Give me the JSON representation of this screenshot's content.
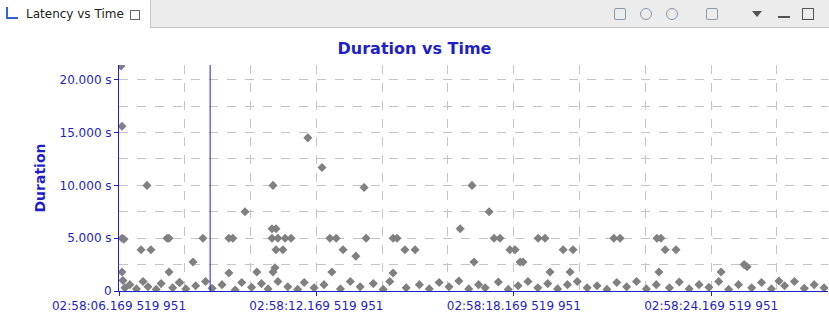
{
  "view": {
    "tab": "Latency vs Time"
  },
  "chart_data": {
    "type": "scatter",
    "title": "Duration vs Time",
    "y_label": "Duration",
    "color": "#808080",
    "marker": "diamond",
    "grid": true,
    "selection": 8.94,
    "x": [
      6.23,
      6.26,
      6.26,
      6.32,
      6.26,
      6.29,
      7.02,
      6.84,
      7.14,
      7.63,
      7.69,
      7.69,
      8.42,
      8.72,
      8.02,
      9.51,
      9.63,
      9.51,
      10.0,
      10.36,
      10.85,
      10.82,
      10.94,
      10.82,
      11.0,
      10.94,
      11.15,
      11.22,
      11.4,
      10.91,
      10.85,
      11.91,
      12.34,
      12.58,
      12.77,
      12.64,
      12.98,
      13.37,
      13.62,
      13.68,
      14.5,
      14.62,
      14.5,
      14.86,
      15.17,
      16.54,
      16.9,
      16.96,
      17.42,
      17.57,
      17.75,
      18.05,
      18.21,
      18.36,
      18.45,
      18.91,
      19.12,
      19.27,
      19.67,
      19.97,
      19.88,
      21.21,
      21.4,
      22.52,
      22.64,
      22.77,
      23.1,
      22.58,
      24.47,
      25.17,
      25.26,
      26.23,
      6.35,
      6.5,
      6.7,
      6.9,
      7.05,
      7.3,
      7.45,
      7.8,
      8.0,
      8.2,
      8.5,
      8.8,
      9.0,
      9.3,
      9.7,
      9.9,
      10.2,
      10.5,
      10.7,
      11.0,
      11.3,
      11.6,
      11.8,
      12.1,
      12.4,
      12.9,
      13.2,
      13.5,
      13.9,
      14.2,
      14.4,
      14.9,
      15.3,
      15.6,
      15.9,
      16.2,
      16.5,
      16.8,
      17.1,
      17.3,
      17.7,
      18.0,
      18.3,
      18.6,
      18.9,
      19.2,
      19.5,
      19.8,
      20.1,
      20.4,
      20.7,
      21.0,
      21.3,
      21.6,
      21.9,
      22.2,
      22.5,
      22.9,
      23.2,
      23.5,
      23.8,
      24.1,
      24.4,
      24.7,
      25.0,
      25.4,
      25.7,
      26.0,
      26.4,
      26.7,
      27.0,
      27.3,
      27.6
    ],
    "values": [
      21.3,
      15.6,
      5.0,
      4.9,
      1.8,
      1.0,
      10.0,
      3.9,
      3.9,
      5.0,
      5.0,
      1.8,
      2.75,
      5.0,
      0.8,
      5.0,
      5.0,
      1.7,
      7.5,
      1.8,
      10.0,
      5.9,
      5.9,
      5.0,
      5.0,
      3.9,
      3.9,
      5.0,
      5.0,
      2.2,
      1.8,
      14.5,
      11.7,
      5.0,
      5.0,
      1.8,
      3.9,
      3.3,
      9.8,
      5.0,
      5.0,
      5.0,
      1.7,
      3.9,
      3.9,
      5.9,
      10.0,
      2.75,
      7.5,
      5.0,
      5.0,
      3.9,
      3.9,
      2.75,
      2.75,
      5.0,
      5.0,
      1.8,
      3.9,
      3.9,
      1.8,
      5.0,
      5.0,
      5.0,
      5.0,
      3.9,
      3.9,
      1.8,
      1.8,
      2.5,
      2.3,
      0.95,
      0.3,
      0.6,
      0.2,
      0.9,
      0.4,
      0.15,
      0.7,
      0.3,
      0.8,
      0.2,
      0.5,
      0.9,
      0.25,
      0.6,
      0.1,
      0.8,
      0.35,
      0.7,
      0.2,
      0.9,
      0.4,
      0.15,
      0.8,
      0.3,
      0.6,
      0.2,
      0.9,
      0.4,
      0.7,
      0.15,
      0.9,
      0.3,
      0.6,
      0.2,
      0.8,
      0.4,
      0.95,
      0.2,
      0.6,
      0.3,
      0.85,
      0.15,
      0.5,
      0.9,
      0.3,
      0.7,
      0.2,
      0.6,
      0.9,
      0.3,
      0.5,
      0.15,
      0.8,
      0.4,
      0.9,
      0.2,
      0.6,
      0.3,
      0.85,
      0.2,
      0.6,
      0.35,
      0.9,
      0.15,
      0.6,
      0.3,
      0.8,
      0.2,
      0.5,
      0.9,
      0.25,
      0.6,
      0.3
    ],
    "xlim": [
      6.169519951,
      27.72
    ],
    "xticks": [
      {
        "value": 6.169519951,
        "label": "02:58:06.169 519 951"
      },
      {
        "value": 12.169519951,
        "label": "02:58:12.169 519 951"
      },
      {
        "value": 18.169519951,
        "label": "02:58:18.169 519 951"
      },
      {
        "value": 24.169519951,
        "label": "02:58:24.169 519 951"
      }
    ],
    "ylim": [
      0,
      21.4
    ],
    "yticks": [
      0,
      {
        "value": 5,
        "label": "5.000 s"
      },
      {
        "value": 10,
        "label": "10.000 s"
      },
      {
        "value": 15,
        "label": "15.000 s"
      },
      {
        "value": 20,
        "label": "20.000 s"
      }
    ]
  }
}
